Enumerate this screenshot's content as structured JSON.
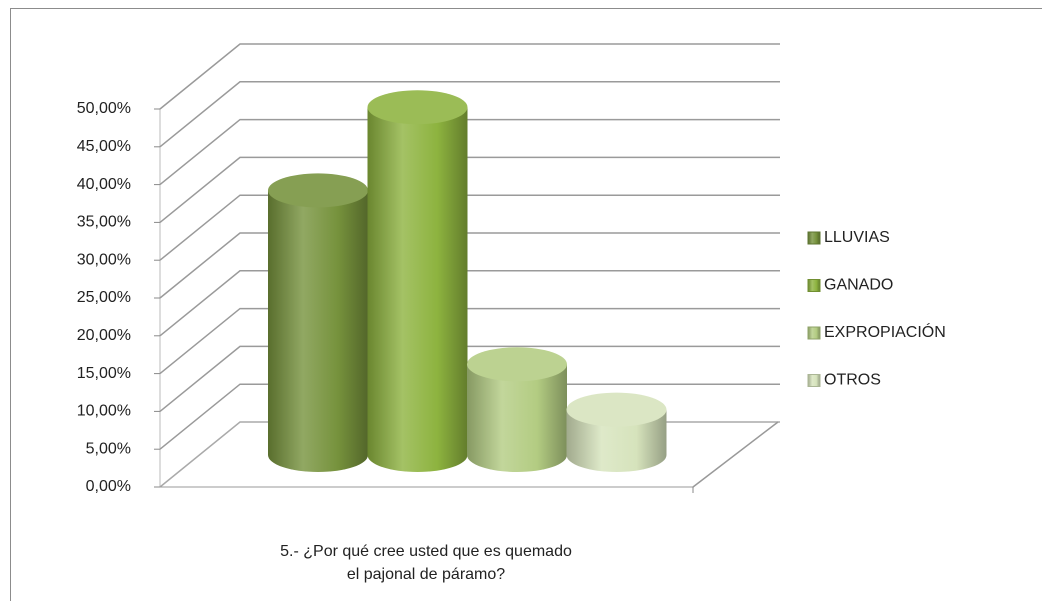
{
  "chart_data": {
    "type": "bar",
    "categories": [
      "5.- ¿Por qué cree usted que es quemado el pajonal de páramo?"
    ],
    "series": [
      {
        "name": "LLUVIAS",
        "color": "#76923c",
        "values": [
          35
        ]
      },
      {
        "name": "GANADO",
        "color": "#8db33f",
        "values": [
          46
        ]
      },
      {
        "name": "EXPROPIACIÓN",
        "color": "#b3cc82",
        "values": [
          12
        ]
      },
      {
        "name": "OTROS",
        "color": "#d6e3bc",
        "values": [
          6
        ]
      }
    ],
    "ylim": [
      0,
      50
    ],
    "yticks": [
      {
        "value": 0,
        "label": "0,00%"
      },
      {
        "value": 5,
        "label": "5,00%"
      },
      {
        "value": 10,
        "label": "10,00%"
      },
      {
        "value": 15,
        "label": "15,00%"
      },
      {
        "value": 20,
        "label": "20,00%"
      },
      {
        "value": 25,
        "label": "25,00%"
      },
      {
        "value": 30,
        "label": "30,00%"
      },
      {
        "value": 35,
        "label": "35,00%"
      },
      {
        "value": 40,
        "label": "40,00%"
      },
      {
        "value": 45,
        "label": "45,00%"
      },
      {
        "value": 50,
        "label": "50,00%"
      }
    ],
    "grid": true,
    "legend": "right"
  }
}
